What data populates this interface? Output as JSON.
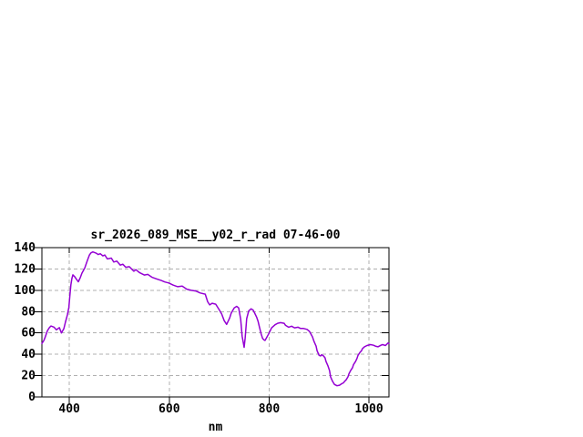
{
  "chart_data": {
    "type": "line",
    "title": "sr_2026_089_MSE__y02_r_rad 07-46-00",
    "xlabel": "nm",
    "ylabel": "",
    "xlim": [
      345,
      1040
    ],
    "ylim": [
      0,
      140
    ],
    "x_ticks": [
      400,
      600,
      800,
      1000
    ],
    "y_ticks": [
      0,
      20,
      40,
      60,
      80,
      100,
      120,
      140
    ],
    "grid": true,
    "legend": "none",
    "colors": {
      "line": "#9400d3",
      "grid": "#b0b0b0",
      "axis": "#000000",
      "text": "#000000",
      "background": "#ffffff"
    },
    "points": [
      [
        345,
        50
      ],
      [
        349,
        53
      ],
      [
        352,
        56.5
      ],
      [
        356,
        62
      ],
      [
        360,
        65
      ],
      [
        363,
        66.5
      ],
      [
        369,
        65.5
      ],
      [
        374,
        63
      ],
      [
        380,
        65
      ],
      [
        384,
        60
      ],
      [
        389,
        64
      ],
      [
        392,
        70
      ],
      [
        396,
        77
      ],
      [
        399,
        84
      ],
      [
        401,
        95
      ],
      [
        403,
        105
      ],
      [
        405,
        111
      ],
      [
        407,
        114.5
      ],
      [
        411,
        112.5
      ],
      [
        414,
        110.5
      ],
      [
        418,
        108
      ],
      [
        422,
        112
      ],
      [
        425,
        116
      ],
      [
        431,
        121
      ],
      [
        436,
        128
      ],
      [
        440,
        133
      ],
      [
        443,
        135
      ],
      [
        447,
        136
      ],
      [
        453,
        135
      ],
      [
        458,
        133.5
      ],
      [
        462,
        134.3
      ],
      [
        467,
        132.2
      ],
      [
        471,
        133.1
      ],
      [
        476,
        129.4
      ],
      [
        484,
        130.2
      ],
      [
        489,
        126.5
      ],
      [
        495,
        127.4
      ],
      [
        502,
        123.6
      ],
      [
        507,
        124.5
      ],
      [
        513,
        121.6
      ],
      [
        520,
        122.2
      ],
      [
        526,
        119.3
      ],
      [
        529,
        117.9
      ],
      [
        533,
        119.3
      ],
      [
        541,
        116.4
      ],
      [
        550,
        114.3
      ],
      [
        557,
        114.9
      ],
      [
        566,
        112.1
      ],
      [
        575,
        110.6
      ],
      [
        584,
        109.2
      ],
      [
        591,
        107.8
      ],
      [
        599,
        106.9
      ],
      [
        608,
        104.8
      ],
      [
        617,
        103.4
      ],
      [
        626,
        103.9
      ],
      [
        635,
        101.1
      ],
      [
        644,
        100
      ],
      [
        653,
        99.4
      ],
      [
        662,
        97.5
      ],
      [
        672,
        96.4
      ],
      [
        677,
        89.2
      ],
      [
        681,
        86.3
      ],
      [
        686,
        87.8
      ],
      [
        693,
        87
      ],
      [
        701,
        81
      ],
      [
        705,
        77.7
      ],
      [
        710,
        71.5
      ],
      [
        715,
        68
      ],
      [
        721,
        74
      ],
      [
        724,
        78.5
      ],
      [
        730,
        83.5
      ],
      [
        735,
        84.9
      ],
      [
        739,
        83.5
      ],
      [
        743,
        73
      ],
      [
        746,
        57
      ],
      [
        750,
        46.5
      ],
      [
        752,
        55
      ],
      [
        755,
        73.4
      ],
      [
        759,
        80.6
      ],
      [
        764,
        82.6
      ],
      [
        768,
        81.4
      ],
      [
        772,
        77.7
      ],
      [
        775,
        74.9
      ],
      [
        778,
        70.6
      ],
      [
        781,
        64.8
      ],
      [
        784,
        59.1
      ],
      [
        787,
        54.8
      ],
      [
        790,
        53.4
      ],
      [
        792,
        53
      ],
      [
        799,
        59.1
      ],
      [
        805,
        64.8
      ],
      [
        812,
        67.7
      ],
      [
        817,
        69.1
      ],
      [
        823,
        69.7
      ],
      [
        830,
        69.1
      ],
      [
        833,
        67.1
      ],
      [
        839,
        65.4
      ],
      [
        845,
        66.3
      ],
      [
        851,
        64.8
      ],
      [
        858,
        65.4
      ],
      [
        863,
        64.2
      ],
      [
        869,
        64.2
      ],
      [
        876,
        63.3
      ],
      [
        881,
        61.4
      ],
      [
        885,
        58
      ],
      [
        887,
        56.2
      ],
      [
        890,
        51.9
      ],
      [
        894,
        47.6
      ],
      [
        896,
        43.3
      ],
      [
        900,
        39
      ],
      [
        903,
        38.4
      ],
      [
        905,
        39.6
      ],
      [
        909,
        38.4
      ],
      [
        912,
        36.7
      ],
      [
        914,
        33.2
      ],
      [
        918,
        28.9
      ],
      [
        921,
        24.6
      ],
      [
        923,
        18.9
      ],
      [
        927,
        14.6
      ],
      [
        931,
        11.7
      ],
      [
        936,
        10.5
      ],
      [
        941,
        11
      ],
      [
        945,
        12.3
      ],
      [
        949,
        13.2
      ],
      [
        951,
        14.6
      ],
      [
        954,
        16
      ],
      [
        958,
        18.9
      ],
      [
        960,
        21.8
      ],
      [
        963,
        24.6
      ],
      [
        967,
        27.5
      ],
      [
        969,
        30.4
      ],
      [
        973,
        33.2
      ],
      [
        976,
        36.1
      ],
      [
        978,
        39
      ],
      [
        982,
        41.8
      ],
      [
        985,
        43.3
      ],
      [
        987,
        45.3
      ],
      [
        991,
        47
      ],
      [
        996,
        48.2
      ],
      [
        1003,
        49.1
      ],
      [
        1009,
        48.5
      ],
      [
        1014,
        47.5
      ],
      [
        1018,
        47
      ],
      [
        1024,
        48.5
      ],
      [
        1027,
        49.1
      ],
      [
        1033,
        48.2
      ],
      [
        1038,
        50.5
      ],
      [
        1040,
        50
      ]
    ]
  }
}
